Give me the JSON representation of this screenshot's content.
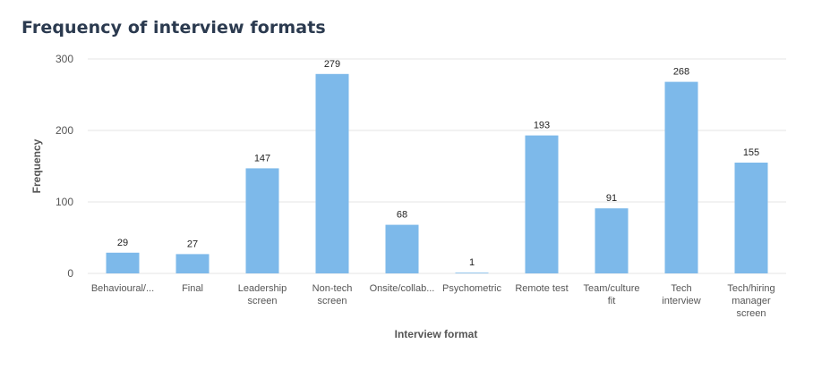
{
  "chart_data": {
    "type": "bar",
    "title": "Frequency of interview formats",
    "xlabel": "Interview format",
    "ylabel": "Frequency",
    "ylim": [
      0,
      300
    ],
    "yticks": [
      0,
      100,
      200,
      300
    ],
    "grid": true,
    "categories": [
      "Behavioural/...",
      "Final",
      "Leadership screen",
      "Non-tech screen",
      "Onsite/collab...",
      "Psychometric",
      "Remote test",
      "Team/culture fit",
      "Tech interview",
      "Tech/hiring manager screen"
    ],
    "category_lines": [
      [
        "Behavioural/..."
      ],
      [
        "Final"
      ],
      [
        "Leadership",
        "screen"
      ],
      [
        "Non-tech",
        "screen"
      ],
      [
        "Onsite/collab..."
      ],
      [
        "Psychometric"
      ],
      [
        "Remote test"
      ],
      [
        "Team/culture",
        "fit"
      ],
      [
        "Tech",
        "interview"
      ],
      [
        "Tech/hiring",
        "manager",
        "screen"
      ]
    ],
    "values": [
      29,
      27,
      147,
      279,
      68,
      1,
      193,
      91,
      268,
      155
    ],
    "bar_color": "#7db9ea",
    "grid_color": "#e6e6e6"
  }
}
